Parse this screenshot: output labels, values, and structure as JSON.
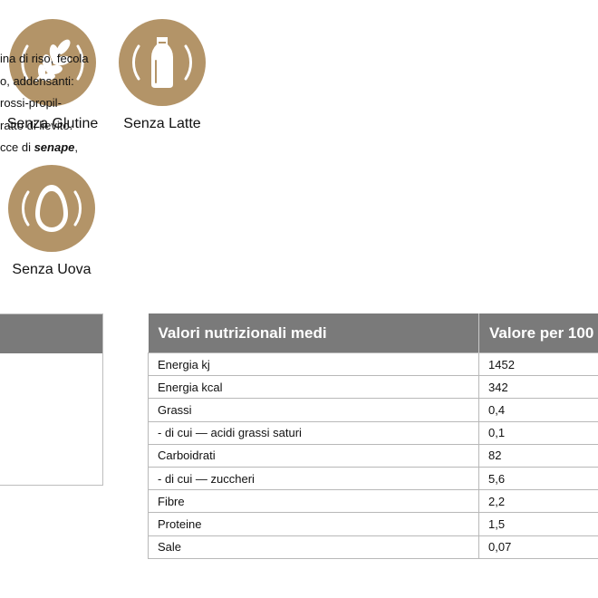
{
  "badges": [
    {
      "label": "Senza Glutine",
      "icon": "wheat-icon"
    },
    {
      "label": "Senza Latte",
      "icon": "milk-bottle-icon"
    },
    {
      "label": "Senza Uova",
      "icon": "egg-icon"
    }
  ],
  "ingredients": {
    "lines": [
      "ina di riso, fecola",
      "o, addensanti:",
      "rossi-propil-",
      "ratto di lievito.",
      "cce di "
    ],
    "allergen": "senape",
    "allergen_suffix": ","
  },
  "nutrition": {
    "header_label": "Valori nutrizionali medi",
    "header_value": "Valore per 100",
    "rows": [
      {
        "label": "Energia kj",
        "value": "1452"
      },
      {
        "label": "Energia kcal",
        "value": "342"
      },
      {
        "label": "Grassi",
        "value": "0,4"
      },
      {
        "label": "- di cui — acidi grassi saturi",
        "value": "0,1"
      },
      {
        "label": "Carboidrati",
        "value": "82"
      },
      {
        "label": "- di cui — zuccheri",
        "value": "5,6"
      },
      {
        "label": "Fibre",
        "value": "2,2"
      },
      {
        "label": "Proteine",
        "value": "1,5"
      },
      {
        "label": "Sale",
        "value": "0,07"
      }
    ]
  },
  "colors": {
    "badge": "#b39468",
    "header": "#7a7a7a"
  }
}
